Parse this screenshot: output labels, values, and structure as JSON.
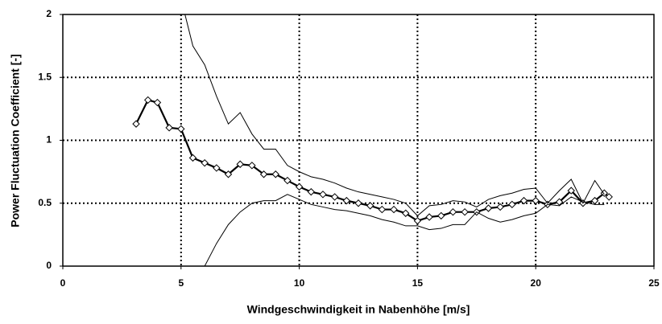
{
  "chart_data": {
    "type": "line",
    "x_label": "Windgeschwindigkeit in Nabenhöhe [m/s]",
    "y_label": "Power Fluctuation Coefficient [-]",
    "xlim": [
      0,
      25
    ],
    "xticks": [
      0,
      5,
      10,
      15,
      20,
      25
    ],
    "ylim": [
      0,
      2
    ],
    "yticks": [
      0,
      0.5,
      1,
      1.5,
      2
    ],
    "grid": true,
    "series": [
      {
        "color": "#000000",
        "marker": "diamond",
        "x": [
          3.1,
          3.6,
          4.0,
          4.5,
          5.0,
          5.5,
          6.0,
          6.5,
          7.0,
          7.5,
          8.0,
          8.5,
          9.0,
          9.5,
          10.0,
          10.5,
          11.0,
          11.5,
          12.0,
          12.5,
          13.0,
          13.5,
          14.0,
          14.5,
          15.0,
          15.5,
          16.0,
          16.5,
          17.0,
          17.5,
          18.0,
          18.5,
          19.0,
          19.5,
          20.0,
          20.5,
          21.0,
          21.5,
          22.0,
          22.5,
          22.9,
          23.1
        ],
        "values": [
          1.13,
          1.32,
          1.3,
          1.1,
          1.09,
          0.86,
          0.82,
          0.78,
          0.73,
          0.81,
          0.8,
          0.73,
          0.73,
          0.68,
          0.63,
          0.59,
          0.57,
          0.55,
          0.52,
          0.5,
          0.48,
          0.45,
          0.45,
          0.42,
          0.36,
          0.39,
          0.4,
          0.43,
          0.43,
          0.43,
          0.46,
          0.47,
          0.49,
          0.52,
          0.52,
          0.49,
          0.51,
          0.6,
          0.5,
          0.52,
          0.58,
          0.55
        ]
      },
      {
        "color": "#000000",
        "marker": "none",
        "x": [
          5.1,
          5.5,
          6.0,
          6.5,
          7.0,
          7.5,
          8.0,
          8.5,
          9.0,
          9.5,
          10.0,
          10.5,
          11.0,
          11.5,
          12.0,
          12.5,
          13.0,
          13.5,
          14.0,
          14.5,
          15.0,
          15.5,
          16.0,
          16.5,
          17.0,
          17.5,
          18.0,
          18.5,
          19.0,
          19.5,
          20.0,
          20.5,
          21.0,
          21.5,
          22.0,
          22.5,
          22.9
        ],
        "values": [
          2.05,
          1.75,
          1.6,
          1.35,
          1.13,
          1.22,
          1.05,
          0.93,
          0.93,
          0.8,
          0.75,
          0.71,
          0.69,
          0.66,
          0.62,
          0.59,
          0.57,
          0.55,
          0.53,
          0.5,
          0.4,
          0.48,
          0.49,
          0.52,
          0.51,
          0.47,
          0.53,
          0.56,
          0.58,
          0.61,
          0.62,
          0.5,
          0.6,
          0.69,
          0.5,
          0.68,
          0.57
        ]
      },
      {
        "color": "#000000",
        "marker": "none",
        "x": [
          5.1,
          5.6,
          6.0,
          6.5,
          7.0,
          7.5,
          8.0,
          8.5,
          9.0,
          9.5,
          10.0,
          10.5,
          11.0,
          11.5,
          12.0,
          12.5,
          13.0,
          13.5,
          14.0,
          14.5,
          15.0,
          15.5,
          16.0,
          16.5,
          17.0,
          17.5,
          18.0,
          18.5,
          19.0,
          19.5,
          20.0,
          20.5,
          21.0,
          21.5,
          22.0,
          22.5,
          22.9
        ],
        "values": [
          -0.02,
          -0.05,
          0.0,
          0.18,
          0.33,
          0.43,
          0.5,
          0.52,
          0.52,
          0.57,
          0.53,
          0.49,
          0.47,
          0.45,
          0.44,
          0.42,
          0.4,
          0.37,
          0.35,
          0.32,
          0.32,
          0.29,
          0.3,
          0.33,
          0.33,
          0.43,
          0.38,
          0.35,
          0.37,
          0.4,
          0.42,
          0.49,
          0.48,
          0.55,
          0.51,
          0.49,
          0.49
        ]
      }
    ]
  }
}
